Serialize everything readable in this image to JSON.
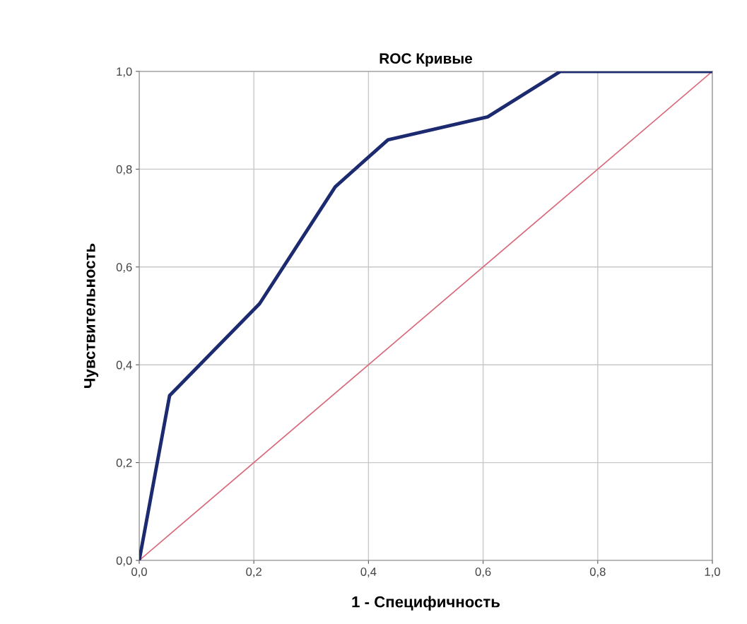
{
  "chart_data": {
    "type": "line",
    "title": "ROC Кривые",
    "xlabel": "1 - Специфичность",
    "ylabel": "Чувствительность",
    "series": [
      {
        "color": "#1c2a70",
        "x": [
          0,
          0.053,
          0.21,
          0.342,
          0.434,
          0.608,
          0.735,
          1.0
        ],
        "values": [
          0,
          0.337,
          0.525,
          0.764,
          0.86,
          0.907,
          1.0,
          1.0
        ]
      },
      {
        "color": "#d9697c",
        "x": [
          0,
          1.0
        ],
        "values": [
          0,
          1.0
        ]
      }
    ],
    "xlim": [
      0,
      1.0
    ],
    "ylim": [
      0,
      1.0
    ],
    "xticks": [
      {
        "value": 0,
        "label": "0,0"
      },
      {
        "value": 0.2,
        "label": "0,2"
      },
      {
        "value": 0.4,
        "label": "0,4"
      },
      {
        "value": 0.6,
        "label": "0,6"
      },
      {
        "value": 0.8,
        "label": "0,8"
      },
      {
        "value": 1.0,
        "label": "1,0"
      }
    ],
    "yticks": [
      {
        "value": 0,
        "label": "0,0"
      },
      {
        "value": 0.2,
        "label": "0,2"
      },
      {
        "value": 0.4,
        "label": "0,4"
      },
      {
        "value": 0.6,
        "label": "0,6"
      },
      {
        "value": 0.8,
        "label": "0,8"
      },
      {
        "value": 1.0,
        "label": "1,0"
      }
    ],
    "grid": true,
    "marker": "none",
    "line_style": "solid"
  }
}
